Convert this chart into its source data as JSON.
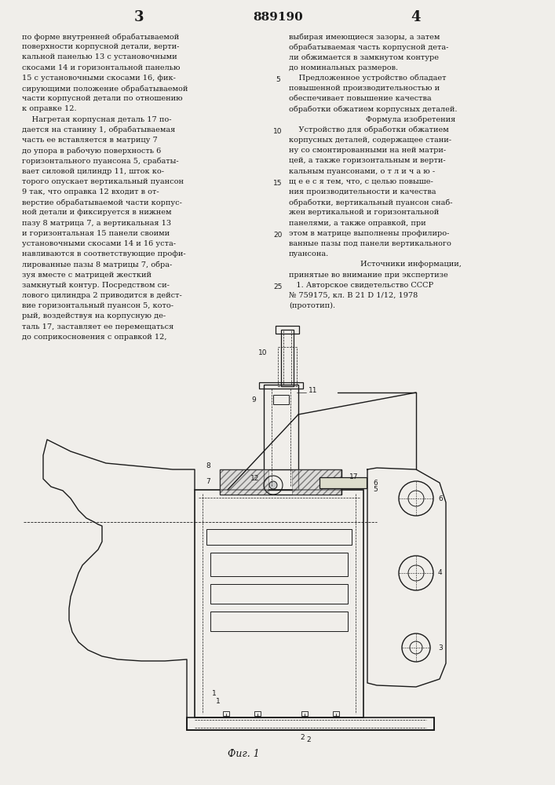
{
  "page_number_left": "3",
  "patent_number": "889190",
  "page_number_right": "4",
  "bg_color": "#f0eeea",
  "text_color": "#1a1a1a",
  "left_column_lines": [
    "по форме внутренней обрабатываемой",
    "поверхности корпусной детали, верти-",
    "кальной панелью 13 с установочными",
    "скосами 14 и горизонтальной панелью",
    "15 с установочными скосами 16, фик-",
    "сирующими положение обрабатываемой",
    "части корпусной детали по отношению",
    "к оправке 12.",
    "    Нагретая корпусная деталь 17 по-",
    "дается на станину 1, обрабатываемая",
    "часть ее вставляется в матрицу 7",
    "до упора в рабочую поверхность 6",
    "горизонтального пуансона 5, срабаты-",
    "вает силовой цилиндр 11, шток ко-",
    "торого опускает вертикальный пуансон",
    "9 так, что оправка 12 входит в от-",
    "верстие обрабатываемой части корпус-",
    "ной детали и фиксируется в нижнем",
    "пазу 8 матрица 7, а вертикальная 13",
    "и горизонтальная 15 панели своими",
    "установочными скосами 14 и 16 уста-",
    "навливаются в соответствующие профи-",
    "лированные пазы 8 матрицы 7, обра-",
    "зуя вместе с матрицей жесткий",
    "замкнутый контур. Посредством си-",
    "лового цилиндра 2 приводится в дейст-",
    "вие горизонтальный пуансон 5, кото-",
    "рый, воздействуя на корпусную де-",
    "таль 17, заставляет ее перемещаться",
    "до соприкосновения с оправкой 12,"
  ],
  "right_column_lines": [
    "выбирая имеющиеся зазоры, а затем",
    "обрабатываемая часть корпусной дета-",
    "ли обжимается в замкнутом контуре",
    "до номинальных размеров.",
    "    Предложенное устройство обладает",
    "повышенной производительностью и",
    "обеспечивает повышение качества",
    "обработки обжатием корпусных деталей.",
    "          Формула изобретения",
    "    Устройство для обработки обжатием",
    "корпусных деталей, содержащее стани-",
    "ну со смонтированными на ней матри-",
    "цей, а также горизонтальным и верти-",
    "кальным пуансонами, о т л и ч а ю -",
    "щ е е с я тем, что, с целью повыше-",
    "ния производительности и качества",
    "обработки, вертикальный пуансон снаб-",
    "жен вертикальной и горизонтальной",
    "панелями, а также оправкой, при",
    "этом в матрице выполнены профилиро-",
    "ванные пазы под панели вертикального",
    "пуансона.",
    "          Источники информации,",
    "принятые во внимание при экспертизе",
    "   1. Авторское свидетельство СССР",
    "№ 759175, кл. В 21 D 1/12, 1978",
    "(прототип)."
  ],
  "line_numbers": [
    {
      "num": "5",
      "idx": 4
    },
    {
      "num": "10",
      "idx": 9
    },
    {
      "num": "15",
      "idx": 14
    },
    {
      "num": "20",
      "idx": 19
    },
    {
      "num": "25",
      "idx": 24
    }
  ],
  "fig_caption": "Фиг. 1"
}
